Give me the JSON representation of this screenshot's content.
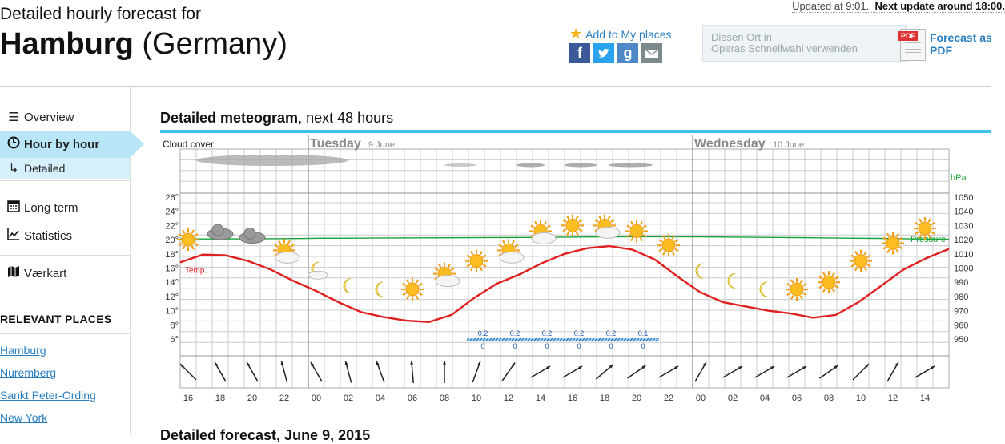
{
  "header": {
    "pre_title": "Detailed hourly forecast for",
    "city": "Hamburg",
    "country": "(Germany)",
    "updated_text": "Updated at 9:01.",
    "next_update_text": "Next update around 18:00."
  },
  "actions": {
    "add_places": "Add to My places",
    "opera_line1": "Diesen Ort in",
    "opera_line2": "Operas Schnellwahl verwenden",
    "pdf_line1": "Forecast as",
    "pdf_line2": "PDF",
    "social": [
      "facebook",
      "twitter",
      "google-plus",
      "email"
    ]
  },
  "sidebar": {
    "items": [
      {
        "label": "Overview",
        "icon": "list-icon"
      },
      {
        "label": "Hour by hour",
        "icon": "clock-icon"
      },
      {
        "label": "Detailed",
        "icon": "arrow-return-icon"
      },
      {
        "label": "Long term",
        "icon": "calendar-icon"
      },
      {
        "label": "Statistics",
        "icon": "chart-icon"
      },
      {
        "label": "Værkart",
        "icon": "map-icon"
      }
    ],
    "relevant_heading": "RELEVANT PLACES",
    "places": [
      "Hamburg",
      "Nuremberg",
      "Sankt Peter-Ording",
      "New York"
    ]
  },
  "main": {
    "section_title_bold": "Detailed meteogram",
    "section_title_rest": ", next 48 hours",
    "bottom_cut": "Detailed forecast, June 9, 2015"
  },
  "colors": {
    "accent": "#3cc4ea",
    "temperature": "#e02020",
    "pressure": "#1aa33a",
    "precip": "#1f5fb0",
    "link": "#2a7fc1"
  },
  "chart_data": {
    "type": "line",
    "labels": {
      "cloud_cover": "Cloud cover",
      "temp": "Temp.",
      "pressure": "Pressure",
      "pressure_unit": "hPa",
      "day1_name": "Tuesday",
      "day1_date": "9 June",
      "day2_name": "Wednesday",
      "day2_date": "10 June"
    },
    "x_ticks": [
      "16",
      "18",
      "20",
      "22",
      "00",
      "02",
      "04",
      "06",
      "08",
      "10",
      "12",
      "14",
      "16",
      "18",
      "20",
      "22",
      "00",
      "02",
      "04",
      "06",
      "08",
      "10",
      "12",
      "14"
    ],
    "temp_ticks": [
      "26°",
      "24°",
      "22°",
      "20°",
      "18°",
      "16°",
      "14°",
      "12°",
      "10°",
      "8°",
      "6°"
    ],
    "temp_range": [
      6,
      26
    ],
    "pressure_ticks": [
      "1050",
      "1040",
      "1030",
      "1020",
      "1010",
      "1000",
      "990",
      "980",
      "970",
      "960",
      "950"
    ],
    "pressure_range": [
      950,
      1050
    ],
    "series": [
      {
        "name": "Temp.",
        "values": [
          16.8,
          17.9,
          17.8,
          17.0,
          15.8,
          14.2,
          12.8,
          11.2,
          9.8,
          9.1,
          8.6,
          8.4,
          9.4,
          11.8,
          13.8,
          15.1,
          16.7,
          18.0,
          18.8,
          19.1,
          18.6,
          17.2,
          14.8,
          12.6,
          11.2,
          10.6,
          10.0,
          9.6,
          9.0,
          9.4,
          11.2,
          13.5,
          15.8,
          17.4,
          18.7
        ]
      },
      {
        "name": "Pressure",
        "values": [
          1020.5,
          1020.5,
          1020.6,
          1020.7,
          1021.0,
          1021.1,
          1021.2,
          1021.3,
          1021.4,
          1021.5,
          1021.6,
          1021.8,
          1022.0,
          1022.1,
          1022.1,
          1022.0,
          1021.8,
          1021.6,
          1021.4,
          1021.1,
          1020.9,
          1020.6,
          1020.3
        ]
      }
    ],
    "precip": {
      "hours_index": [
        9,
        10,
        11,
        12,
        13,
        14
      ],
      "top": [
        "0.2",
        "0.2",
        "0.2",
        "0.2",
        "0.2",
        "0.1"
      ],
      "bottom": [
        "0",
        "0",
        "0",
        "0",
        "0",
        "0"
      ]
    },
    "wind_directions": [
      315,
      330,
      330,
      345,
      330,
      345,
      340,
      355,
      0,
      20,
      35,
      60,
      60,
      50,
      55,
      60,
      30,
      60,
      60,
      60,
      55,
      45,
      30,
      60
    ],
    "symbols": [
      "sun",
      "cloud",
      "cloud",
      "partly-sun",
      "partly-moon",
      "moon",
      "moon",
      "sun",
      "partly-sun",
      "sun",
      "partly-sun",
      "partly-sun",
      "sun",
      "partly-sun",
      "sun",
      "sun",
      "moon",
      "moon",
      "moon",
      "sun",
      "sun",
      "sun",
      "sun",
      "sun"
    ],
    "symbol_temps": [
      20,
      20.8,
      20.3,
      18.5,
      15.8,
      13.5,
      13.0,
      13.0,
      15.2,
      17.0,
      18.5,
      21.2,
      22.0,
      22.0,
      21.2,
      19.2,
      15.6,
      14.2,
      13.0,
      13.0,
      14.0,
      17.0,
      19.5,
      21.6
    ]
  }
}
